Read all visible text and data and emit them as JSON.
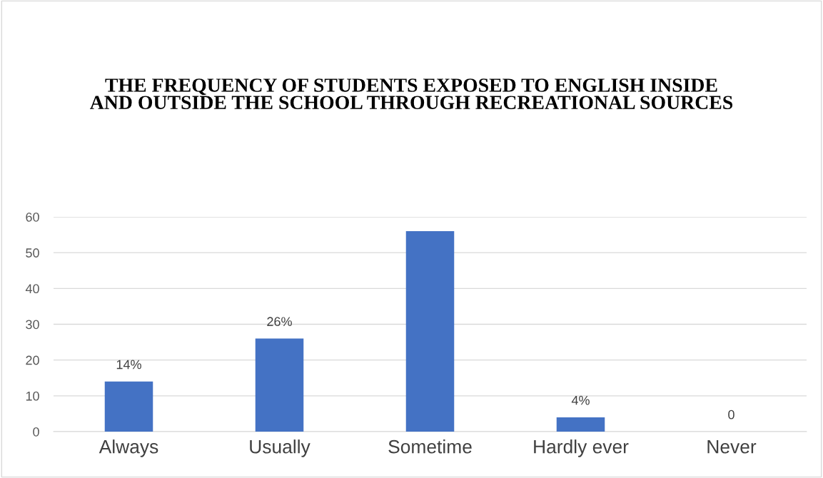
{
  "chart_data": {
    "type": "bar",
    "title": "THE FREQUENCY OF STUDENTS EXPOSED TO ENGLISH INSIDE\nAND OUTSIDE THE SCHOOL THROUGH RECREATIONAL SOURCES",
    "categories": [
      "Always",
      "Usually",
      "Sometime",
      "Hardly ever",
      "Never"
    ],
    "values": [
      14,
      26,
      56,
      4,
      0
    ],
    "value_labels": [
      "14%",
      "26%",
      null,
      "4%",
      "0"
    ],
    "color": "#4472c4",
    "ylim": [
      0,
      60
    ],
    "yticks": [
      0,
      10,
      20,
      30,
      40,
      50,
      60
    ],
    "grid": "y"
  }
}
